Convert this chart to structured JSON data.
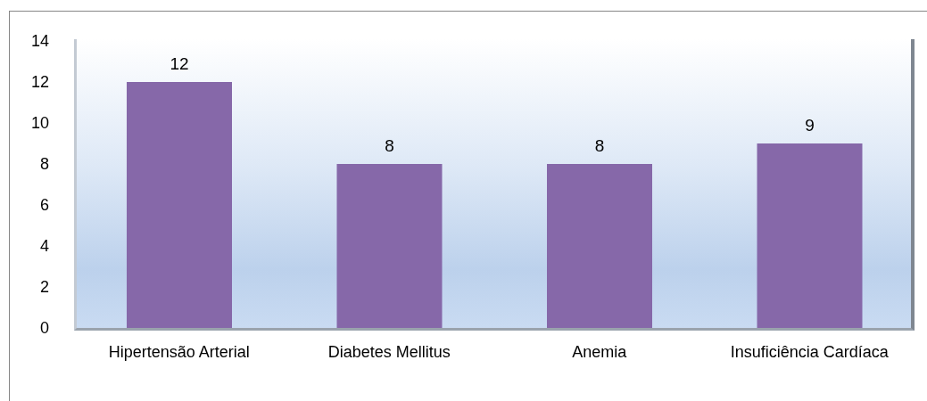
{
  "chart_data": {
    "type": "bar",
    "categories": [
      "Hipertensão Arterial",
      "Diabetes Mellitus",
      "Anemia",
      "Insuficiência Cardíaca"
    ],
    "values": [
      12,
      8,
      8,
      9
    ],
    "color": "#8668a9",
    "ylim": [
      0,
      14
    ],
    "yticks": [
      0,
      2,
      4,
      6,
      8,
      10,
      12,
      14
    ],
    "data_labels": true
  }
}
